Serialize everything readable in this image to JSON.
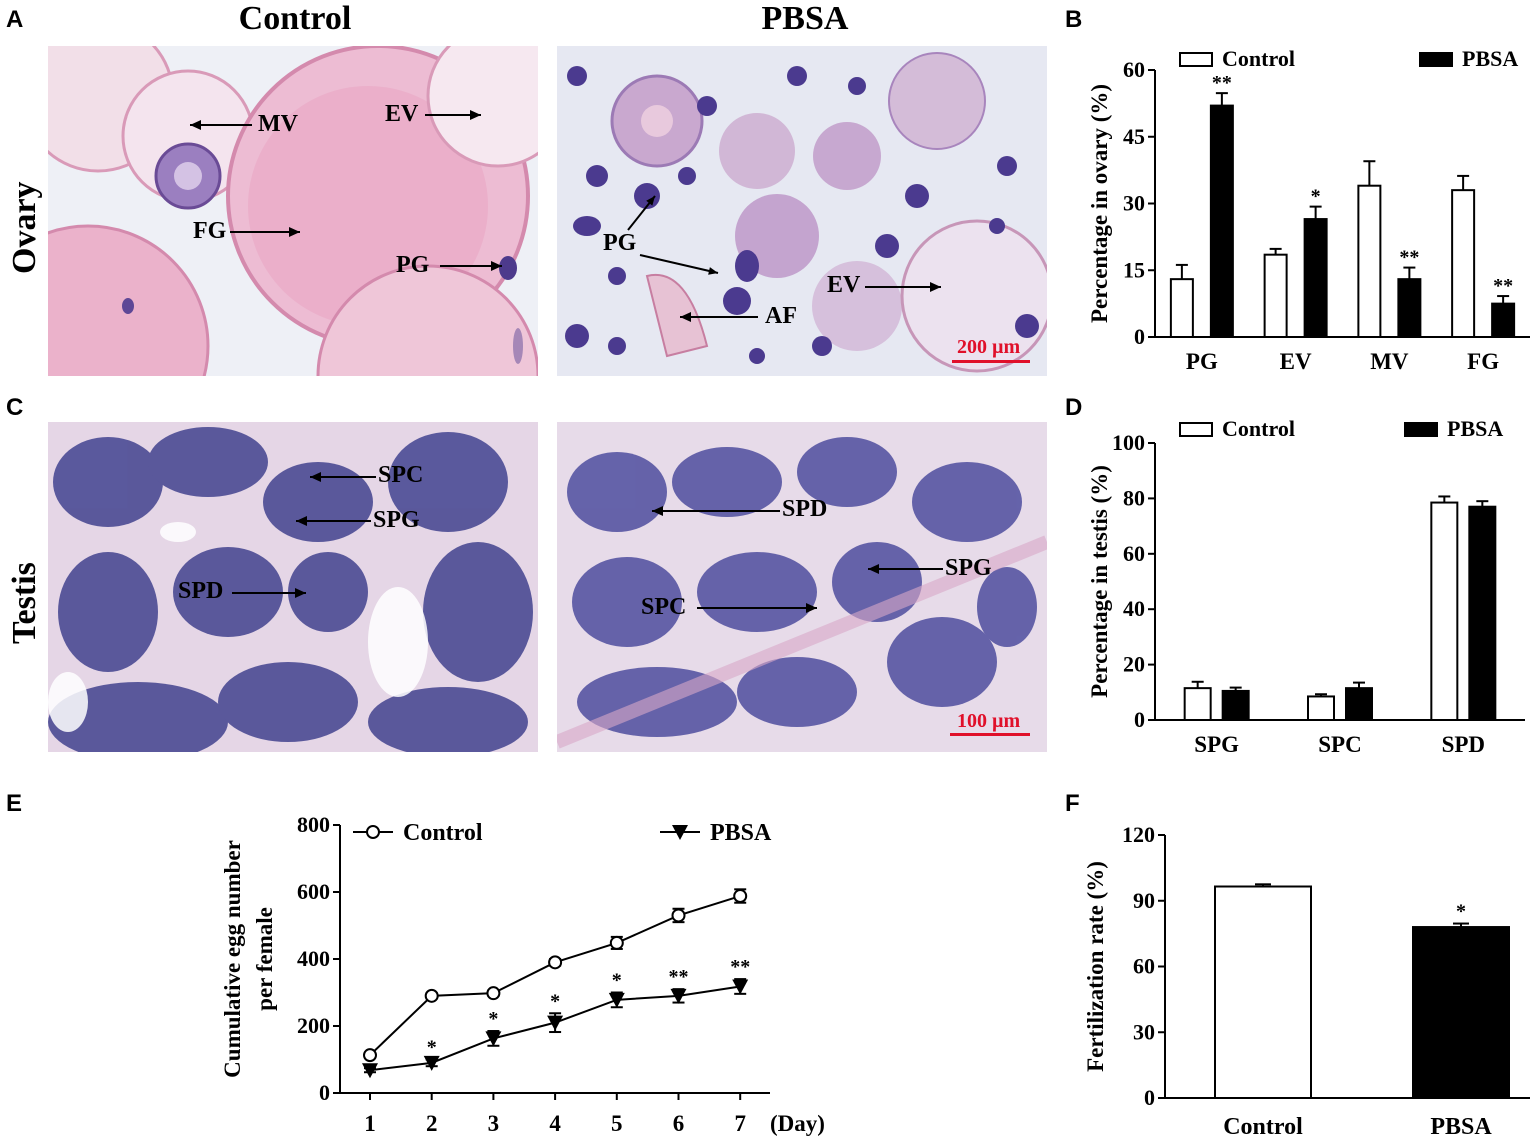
{
  "panels": {
    "A": "A",
    "B": "B",
    "C": "C",
    "D": "D",
    "E": "E",
    "F": "F"
  },
  "micrographs": {
    "col_control": "Control",
    "col_pbsa": "PBSA",
    "row_ovary": "Ovary",
    "row_testis": "Testis",
    "ovary_control_labels": [
      "MV",
      "EV",
      "FG",
      "PG"
    ],
    "ovary_pbsa_labels": [
      "PG",
      "EV",
      "AF"
    ],
    "ovary_scalebar": "200 µm",
    "testis_control_labels": [
      "SPC",
      "SPG",
      "SPD"
    ],
    "testis_pbsa_labels": [
      "SPD",
      "SPG",
      "SPC"
    ],
    "testis_scalebar": "100 µm",
    "colors": {
      "ovary_bg": "#f3e2ec",
      "oocyte_pink": "#e7a8c4",
      "basophil": "#5b3f8f",
      "testis_bg": "#e8d8ea",
      "testis_cell": "#3f3f96",
      "background_gap": "#dfe3ee"
    }
  },
  "chart_data": [
    {
      "id": "B",
      "type": "bar",
      "categories": [
        "PG",
        "EV",
        "MV",
        "FG"
      ],
      "series": [
        {
          "name": "Control",
          "values": [
            13,
            18.5,
            34,
            33
          ],
          "errors": [
            3.2,
            1.3,
            5.5,
            3.2
          ],
          "color": "#ffffff"
        },
        {
          "name": "PBSA",
          "values": [
            52,
            26.5,
            13,
            7.5
          ],
          "errors": [
            2.8,
            2.8,
            2.6,
            1.7
          ],
          "color": "#000000"
        }
      ],
      "significance": [
        "**",
        "*",
        "**",
        "**"
      ],
      "ylabel": "Percentage in ovary (%)",
      "yticks": [
        0,
        15,
        30,
        45,
        60
      ],
      "ylim": [
        0,
        60
      ],
      "legend": "top"
    },
    {
      "id": "D",
      "type": "bar",
      "categories": [
        "SPG",
        "SPC",
        "SPD"
      ],
      "series": [
        {
          "name": "Control",
          "values": [
            11.5,
            8.5,
            78.5
          ],
          "errors": [
            2.3,
            0.8,
            2.2
          ],
          "color": "#ffffff"
        },
        {
          "name": "PBSA",
          "values": [
            10.5,
            11.5,
            77
          ],
          "errors": [
            1.2,
            2.0,
            2.0
          ],
          "color": "#000000"
        }
      ],
      "ylabel": "Percentage in testis (%)",
      "yticks": [
        0,
        20,
        40,
        60,
        80,
        100
      ],
      "ylim": [
        0,
        100
      ],
      "legend": "top"
    },
    {
      "id": "E",
      "type": "line",
      "x": [
        1,
        2,
        3,
        4,
        5,
        6,
        7
      ],
      "series": [
        {
          "name": "Control",
          "values": [
            113,
            290,
            298,
            390,
            448,
            530,
            588
          ],
          "errors": [
            8,
            8,
            8,
            10,
            18,
            20,
            20
          ],
          "marker": "circle-open"
        },
        {
          "name": "PBSA",
          "values": [
            68,
            90,
            163,
            210,
            278,
            290,
            318
          ],
          "errors": [
            6,
            10,
            22,
            28,
            22,
            20,
            22
          ],
          "marker": "triangle-down-filled"
        }
      ],
      "significance": [
        "",
        "*",
        "*",
        "*",
        "*",
        "**",
        "**"
      ],
      "ylabel": "Cumulative egg number per female",
      "ylabel_lines": [
        "Cumulative egg number",
        "per female"
      ],
      "xlabel": "(Day)",
      "yticks": [
        0,
        200,
        400,
        600,
        800
      ],
      "ylim": [
        0,
        800
      ],
      "legend": "top"
    },
    {
      "id": "F",
      "type": "bar",
      "categories": [
        "Control",
        "PBSA"
      ],
      "values": [
        96.5,
        78
      ],
      "errors": [
        1.0,
        1.6
      ],
      "colors": [
        "#ffffff",
        "#000000"
      ],
      "significance": [
        "",
        "*"
      ],
      "ylabel": "Fertilization rate (%)",
      "yticks": [
        0,
        30,
        60,
        90,
        120
      ],
      "ylim": [
        0,
        120
      ]
    }
  ]
}
